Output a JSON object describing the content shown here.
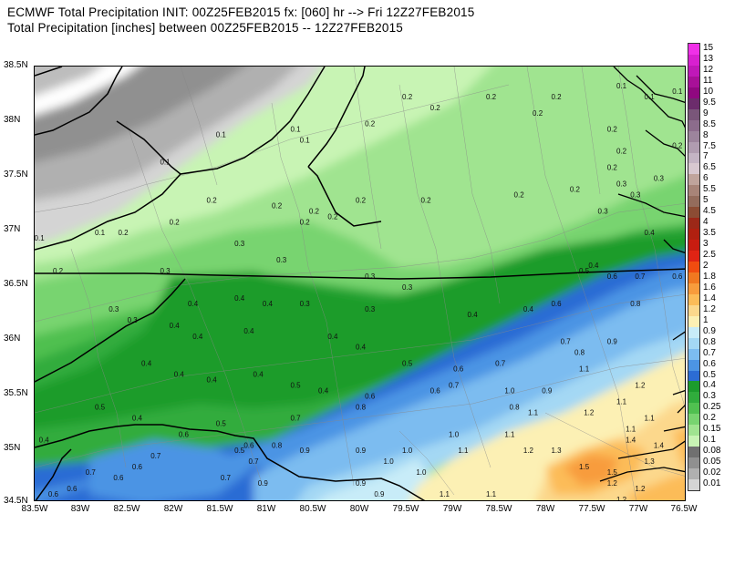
{
  "header": {
    "line1": "ECMWF Total Precipitation INIT: 00Z25FEB2015 fx: [060] hr --> Fri 12Z27FEB2015",
    "line2": "Total Precipitation [inches] between 00Z25FEB2015 -- 12Z27FEB2015"
  },
  "axes": {
    "lat_labels": [
      "38.5N",
      "38N",
      "37.5N",
      "37N",
      "36.5N",
      "36N",
      "35.5N",
      "35N",
      "34.5N"
    ],
    "lon_labels": [
      "83.5W",
      "83W",
      "82.5W",
      "82W",
      "81.5W",
      "81W",
      "80.5W",
      "80W",
      "79.5W",
      "79W",
      "78.5W",
      "78W",
      "77.5W",
      "77W",
      "76.5W"
    ],
    "lat_range": [
      34.5,
      38.5
    ],
    "lon_range": [
      -83.5,
      -76.5
    ]
  },
  "legend": {
    "labels": [
      "15",
      "13",
      "12",
      "11",
      "10",
      "9.5",
      "9",
      "8.5",
      "8",
      "7.5",
      "7",
      "6.5",
      "6",
      "5.5",
      "5",
      "4.5",
      "4",
      "3.5",
      "3",
      "2.5",
      "2",
      "1.8",
      "1.6",
      "1.4",
      "1.2",
      "1",
      "0.9",
      "0.8",
      "0.7",
      "0.6",
      "0.5",
      "0.4",
      "0.3",
      "0.25",
      "0.2",
      "0.15",
      "0.1",
      "0.08",
      "0.05",
      "0.02",
      "0.01"
    ],
    "colors": [
      "#f030e8",
      "#d820d0",
      "#c018b8",
      "#a81098",
      "#900880",
      "#6c2c6c",
      "#7a567a",
      "#8c6c8c",
      "#9c849c",
      "#b09cb0",
      "#c4b4c4",
      "#d8c8d0",
      "#c0a49c",
      "#a88478",
      "#946c5c",
      "#8c4c34",
      "#9c2818",
      "#b02010",
      "#c81c10",
      "#e02414",
      "#f04c10",
      "#f07820",
      "#f89c3c",
      "#fcbc58",
      "#fcd88c",
      "#fcf0b4",
      "#c8ecf8",
      "#a4d8f4",
      "#7cbcf0",
      "#4c94e4",
      "#2c6cd4",
      "#1c9c2c",
      "#30ac3c",
      "#50c050",
      "#78d470",
      "#a0e490",
      "#c8f4b4",
      "#707070",
      "#909090",
      "#b0b0b0",
      "#d4d4d4"
    ]
  },
  "precip_values": [
    {
      "lon": -82.8,
      "lat": 36.95,
      "v": "0.1"
    },
    {
      "lon": -83.45,
      "lat": 36.9,
      "v": "0.1"
    },
    {
      "lon": -82.1,
      "lat": 37.6,
      "v": "0.1"
    },
    {
      "lon": -81.5,
      "lat": 37.85,
      "v": "0.1"
    },
    {
      "lon": -80.7,
      "lat": 37.9,
      "v": "0.1"
    },
    {
      "lon": -80.6,
      "lat": 37.8,
      "v": "0.1"
    },
    {
      "lon": -77.2,
      "lat": 38.3,
      "v": "0.1"
    },
    {
      "lon": -76.6,
      "lat": 38.25,
      "v": "0.1"
    },
    {
      "lon": -76.9,
      "lat": 38.2,
      "v": "0.1"
    },
    {
      "lon": -79.5,
      "lat": 38.2,
      "v": "0.2"
    },
    {
      "lon": -78.6,
      "lat": 38.2,
      "v": "0.2"
    },
    {
      "lon": -77.9,
      "lat": 38.2,
      "v": "0.2"
    },
    {
      "lon": -79.2,
      "lat": 38.1,
      "v": "0.2"
    },
    {
      "lon": -78.1,
      "lat": 38.05,
      "v": "0.2"
    },
    {
      "lon": -79.9,
      "lat": 37.95,
      "v": "0.2"
    },
    {
      "lon": -77.3,
      "lat": 37.9,
      "v": "0.2"
    },
    {
      "lon": -77.2,
      "lat": 37.7,
      "v": "0.2"
    },
    {
      "lon": -76.6,
      "lat": 37.75,
      "v": "0.2"
    },
    {
      "lon": -81.6,
      "lat": 37.25,
      "v": "0.2"
    },
    {
      "lon": -80.9,
      "lat": 37.2,
      "v": "0.2"
    },
    {
      "lon": -80.0,
      "lat": 37.25,
      "v": "0.2"
    },
    {
      "lon": -79.3,
      "lat": 37.25,
      "v": "0.2"
    },
    {
      "lon": -78.3,
      "lat": 37.3,
      "v": "0.2"
    },
    {
      "lon": -77.7,
      "lat": 37.35,
      "v": "0.2"
    },
    {
      "lon": -82.0,
      "lat": 37.05,
      "v": "0.2"
    },
    {
      "lon": -82.55,
      "lat": 36.95,
      "v": "0.2"
    },
    {
      "lon": -80.5,
      "lat": 37.15,
      "v": "0.2"
    },
    {
      "lon": -80.3,
      "lat": 37.1,
      "v": "0.2"
    },
    {
      "lon": -83.25,
      "lat": 36.6,
      "v": "0.2"
    },
    {
      "lon": -77.3,
      "lat": 37.55,
      "v": "0.2"
    },
    {
      "lon": -80.6,
      "lat": 37.05,
      "v": "0.2"
    },
    {
      "lon": -81.3,
      "lat": 36.85,
      "v": "0.3"
    },
    {
      "lon": -80.85,
      "lat": 36.7,
      "v": "0.3"
    },
    {
      "lon": -82.1,
      "lat": 36.6,
      "v": "0.3"
    },
    {
      "lon": -79.9,
      "lat": 36.55,
      "v": "0.3"
    },
    {
      "lon": -79.5,
      "lat": 36.45,
      "v": "0.3"
    },
    {
      "lon": -82.65,
      "lat": 36.25,
      "v": "0.3"
    },
    {
      "lon": -82.45,
      "lat": 36.15,
      "v": "0.3"
    },
    {
      "lon": -80.6,
      "lat": 36.3,
      "v": "0.3"
    },
    {
      "lon": -79.9,
      "lat": 36.25,
      "v": "0.3"
    },
    {
      "lon": -77.4,
      "lat": 37.15,
      "v": "0.3"
    },
    {
      "lon": -76.8,
      "lat": 37.45,
      "v": "0.3"
    },
    {
      "lon": -77.05,
      "lat": 37.3,
      "v": "0.3"
    },
    {
      "lon": -77.2,
      "lat": 37.4,
      "v": "0.3"
    },
    {
      "lon": -81.8,
      "lat": 36.3,
      "v": "0.4"
    },
    {
      "lon": -81.3,
      "lat": 36.35,
      "v": "0.4"
    },
    {
      "lon": -81.0,
      "lat": 36.3,
      "v": "0.4"
    },
    {
      "lon": -82.0,
      "lat": 36.1,
      "v": "0.4"
    },
    {
      "lon": -81.75,
      "lat": 36.0,
      "v": "0.4"
    },
    {
      "lon": -81.2,
      "lat": 36.05,
      "v": "0.4"
    },
    {
      "lon": -80.3,
      "lat": 36.0,
      "v": "0.4"
    },
    {
      "lon": -80.0,
      "lat": 35.9,
      "v": "0.4"
    },
    {
      "lon": -82.3,
      "lat": 35.75,
      "v": "0.4"
    },
    {
      "lon": -81.95,
      "lat": 35.65,
      "v": "0.4"
    },
    {
      "lon": -81.6,
      "lat": 35.6,
      "v": "0.4"
    },
    {
      "lon": -81.1,
      "lat": 35.65,
      "v": "0.4"
    },
    {
      "lon": -80.4,
      "lat": 35.5,
      "v": "0.4"
    },
    {
      "lon": -83.4,
      "lat": 35.05,
      "v": "0.4"
    },
    {
      "lon": -82.4,
      "lat": 35.25,
      "v": "0.4"
    },
    {
      "lon": -78.8,
      "lat": 36.2,
      "v": "0.4"
    },
    {
      "lon": -78.2,
      "lat": 36.25,
      "v": "0.4"
    },
    {
      "lon": -77.5,
      "lat": 36.65,
      "v": "0.4"
    },
    {
      "lon": -76.9,
      "lat": 36.95,
      "v": "0.4"
    },
    {
      "lon": -80.7,
      "lat": 35.55,
      "v": "0.5"
    },
    {
      "lon": -82.8,
      "lat": 35.35,
      "v": "0.5"
    },
    {
      "lon": -79.5,
      "lat": 35.75,
      "v": "0.5"
    },
    {
      "lon": -81.5,
      "lat": 35.2,
      "v": "0.5"
    },
    {
      "lon": -81.3,
      "lat": 34.95,
      "v": "0.5"
    },
    {
      "lon": -77.6,
      "lat": 36.6,
      "v": "0.5"
    },
    {
      "lon": -79.9,
      "lat": 35.45,
      "v": "0.6"
    },
    {
      "lon": -79.2,
      "lat": 35.5,
      "v": "0.6"
    },
    {
      "lon": -81.9,
      "lat": 35.1,
      "v": "0.6"
    },
    {
      "lon": -81.2,
      "lat": 35.0,
      "v": "0.6"
    },
    {
      "lon": -82.4,
      "lat": 34.8,
      "v": "0.6"
    },
    {
      "lon": -82.6,
      "lat": 34.7,
      "v": "0.6"
    },
    {
      "lon": -83.1,
      "lat": 34.6,
      "v": "0.6"
    },
    {
      "lon": -83.3,
      "lat": 34.55,
      "v": "0.6"
    },
    {
      "lon": -78.95,
      "lat": 35.7,
      "v": "0.6"
    },
    {
      "lon": -77.9,
      "lat": 36.3,
      "v": "0.6"
    },
    {
      "lon": -77.3,
      "lat": 36.55,
      "v": "0.6"
    },
    {
      "lon": -76.6,
      "lat": 36.55,
      "v": "0.6"
    },
    {
      "lon": -78.5,
      "lat": 35.75,
      "v": "0.7"
    },
    {
      "lon": -79.0,
      "lat": 35.55,
      "v": "0.7"
    },
    {
      "lon": -80.7,
      "lat": 35.25,
      "v": "0.7"
    },
    {
      "lon": -82.2,
      "lat": 34.9,
      "v": "0.7"
    },
    {
      "lon": -82.9,
      "lat": 34.75,
      "v": "0.7"
    },
    {
      "lon": -81.15,
      "lat": 34.85,
      "v": "0.7"
    },
    {
      "lon": -81.45,
      "lat": 34.7,
      "v": "0.7"
    },
    {
      "lon": -77.8,
      "lat": 35.95,
      "v": "0.7"
    },
    {
      "lon": -77.0,
      "lat": 36.55,
      "v": "0.7"
    },
    {
      "lon": -80.0,
      "lat": 35.35,
      "v": "0.8"
    },
    {
      "lon": -78.35,
      "lat": 35.35,
      "v": "0.8"
    },
    {
      "lon": -77.65,
      "lat": 35.85,
      "v": "0.8"
    },
    {
      "lon": -77.05,
      "lat": 36.3,
      "v": "0.8"
    },
    {
      "lon": -80.9,
      "lat": 35.0,
      "v": "0.8"
    },
    {
      "lon": -80.6,
      "lat": 34.95,
      "v": "0.9"
    },
    {
      "lon": -80.0,
      "lat": 34.95,
      "v": "0.9"
    },
    {
      "lon": -81.05,
      "lat": 34.65,
      "v": "0.9"
    },
    {
      "lon": -80.0,
      "lat": 34.65,
      "v": "0.9"
    },
    {
      "lon": -78.0,
      "lat": 35.5,
      "v": "0.9"
    },
    {
      "lon": -77.3,
      "lat": 35.95,
      "v": "0.9"
    },
    {
      "lon": -79.8,
      "lat": 34.55,
      "v": "0.9"
    },
    {
      "lon": -79.5,
      "lat": 34.95,
      "v": "1.0"
    },
    {
      "lon": -79.0,
      "lat": 35.1,
      "v": "1.0"
    },
    {
      "lon": -79.7,
      "lat": 34.85,
      "v": "1.0"
    },
    {
      "lon": -79.35,
      "lat": 34.75,
      "v": "1.0"
    },
    {
      "lon": -78.4,
      "lat": 35.5,
      "v": "1.0"
    },
    {
      "lon": -77.6,
      "lat": 35.7,
      "v": "1.1"
    },
    {
      "lon": -78.15,
      "lat": 35.3,
      "v": "1.1"
    },
    {
      "lon": -78.4,
      "lat": 35.1,
      "v": "1.1"
    },
    {
      "lon": -78.9,
      "lat": 34.95,
      "v": "1.1"
    },
    {
      "lon": -79.1,
      "lat": 34.55,
      "v": "1.1"
    },
    {
      "lon": -78.6,
      "lat": 34.55,
      "v": "1.1"
    },
    {
      "lon": -77.2,
      "lat": 35.4,
      "v": "1.1"
    },
    {
      "lon": -77.1,
      "lat": 35.15,
      "v": "1.1"
    },
    {
      "lon": -76.9,
      "lat": 35.25,
      "v": "1.1"
    },
    {
      "lon": -77.55,
      "lat": 35.3,
      "v": "1.2"
    },
    {
      "lon": -78.2,
      "lat": 34.95,
      "v": "1.2"
    },
    {
      "lon": -77.0,
      "lat": 35.55,
      "v": "1.2"
    },
    {
      "lon": -77.3,
      "lat": 34.65,
      "v": "1.2"
    },
    {
      "lon": -77.0,
      "lat": 34.6,
      "v": "1.2"
    },
    {
      "lon": -76.9,
      "lat": 34.85,
      "v": "1.3"
    },
    {
      "lon": -77.9,
      "lat": 34.95,
      "v": "1.3"
    },
    {
      "lon": -77.1,
      "lat": 35.05,
      "v": "1.4"
    },
    {
      "lon": -77.6,
      "lat": 34.8,
      "v": "1.5"
    },
    {
      "lon": -77.3,
      "lat": 34.75,
      "v": "1.5"
    },
    {
      "lon": -76.8,
      "lat": 35.0,
      "v": "1.4"
    },
    {
      "lon": -77.2,
      "lat": 34.5,
      "v": "1.2"
    }
  ]
}
